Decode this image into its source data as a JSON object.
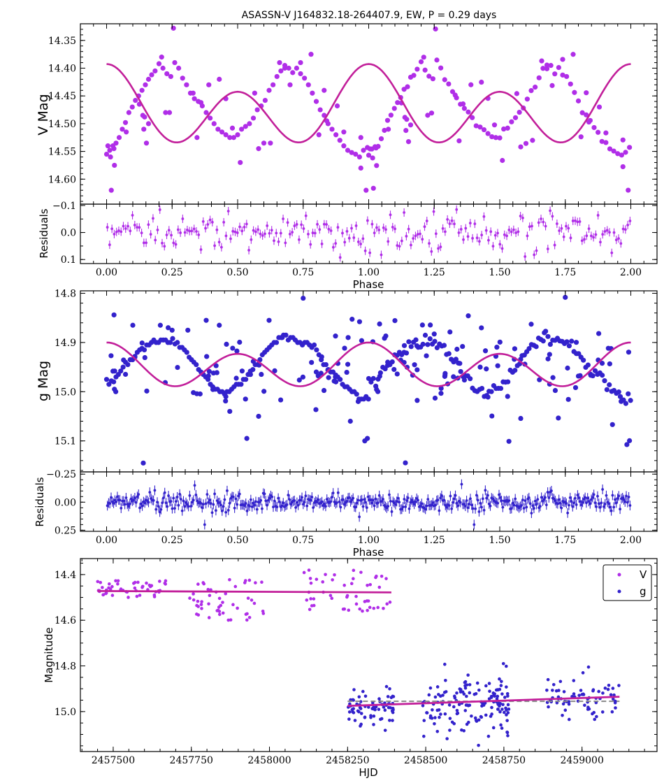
{
  "colors": {
    "v_points": "#b02ee8",
    "g_points": "#3322cc",
    "fit": "#c21f9a",
    "reference": "#888888"
  },
  "chart_data": [
    {
      "id": "v_phase",
      "type": "scatter",
      "title": "ASASSN-V J164832.18-264407.9, EW, P = 0.29 days",
      "xlabel": "",
      "ylabel": "V Mag",
      "y_inverted": true,
      "xlim": [
        -0.1,
        2.1
      ],
      "ylim": [
        14.32,
        14.645
      ],
      "yticks": [
        14.35,
        14.4,
        14.45,
        14.5,
        14.55,
        14.6
      ],
      "ytick_labels": [
        "14.35",
        "14.40",
        "14.45",
        "14.50",
        "14.55",
        "14.60"
      ],
      "xticks": [
        0.0,
        0.25,
        0.5,
        0.75,
        1.0,
        1.25,
        1.5,
        1.75,
        2.0
      ],
      "fit_model": {
        "mean": 14.475,
        "a1": 0.025,
        "a2": 0.0575
      },
      "points": {
        "x": [
          0.0,
          0.012,
          0.024,
          0.036,
          0.048,
          0.06,
          0.072,
          0.085,
          0.098,
          0.11,
          0.122,
          0.135,
          0.148,
          0.16,
          0.172,
          0.185,
          0.2,
          0.215,
          0.23,
          0.245,
          0.26,
          0.275,
          0.29,
          0.305,
          0.32,
          0.335,
          0.35,
          0.365,
          0.38,
          0.395,
          0.41,
          0.425,
          0.44,
          0.455,
          0.47,
          0.485,
          0.5,
          0.515,
          0.53,
          0.545,
          0.56,
          0.575,
          0.59,
          0.605,
          0.62,
          0.635,
          0.65,
          0.665,
          0.68,
          0.695,
          0.71,
          0.725,
          0.74,
          0.755,
          0.77,
          0.785,
          0.8,
          0.815,
          0.83,
          0.845,
          0.86,
          0.875,
          0.89,
          0.905,
          0.92,
          0.935,
          0.95,
          0.965,
          0.98,
          0.995,
          0.03,
          0.145,
          0.255,
          0.36,
          0.48,
          0.6,
          0.68,
          0.78,
          0.88,
          0.97,
          0.99,
          0.005,
          0.018,
          0.21,
          0.225,
          0.7,
          0.74,
          0.905,
          0.015,
          0.028,
          0.138,
          0.142,
          0.152,
          0.33,
          0.345,
          0.39,
          0.51,
          0.565,
          0.84,
          0.97,
          0.24,
          0.16,
          0.075,
          0.43,
          0.625,
          0.66,
          0.455,
          0.81,
          0.125,
          0.83,
          0.58
        ],
        "y": [
          14.555,
          14.548,
          14.54,
          14.535,
          14.525,
          14.51,
          14.498,
          14.48,
          14.47,
          14.458,
          14.45,
          14.44,
          14.43,
          14.42,
          14.412,
          14.405,
          14.392,
          14.4,
          14.41,
          14.415,
          14.39,
          14.4,
          14.418,
          14.43,
          14.445,
          14.455,
          14.46,
          14.468,
          14.48,
          14.49,
          14.5,
          14.51,
          14.515,
          14.52,
          14.525,
          14.525,
          14.52,
          14.51,
          14.505,
          14.5,
          14.49,
          14.475,
          14.468,
          14.458,
          14.44,
          14.43,
          14.415,
          14.405,
          14.4,
          14.4,
          14.408,
          14.4,
          14.41,
          14.418,
          14.43,
          14.445,
          14.46,
          14.475,
          14.485,
          14.5,
          14.51,
          14.52,
          14.53,
          14.54,
          14.548,
          14.552,
          14.555,
          14.56,
          14.548,
          14.543,
          14.575,
          14.488,
          14.328,
          14.462,
          14.508,
          14.535,
          14.395,
          14.375,
          14.468,
          14.58,
          14.62,
          14.54,
          14.62,
          14.38,
          14.48,
          14.43,
          14.39,
          14.515,
          14.56,
          14.545,
          14.485,
          14.51,
          14.535,
          14.445,
          14.525,
          14.43,
          14.57,
          14.445,
          14.495,
          14.525,
          14.48,
          14.5,
          14.515,
          14.42,
          14.535,
          14.39,
          14.455,
          14.52,
          14.465,
          14.44,
          14.545
        ]
      },
      "residuals": {
        "ylabel": "Residuals",
        "y_inverted": true,
        "ylim": [
          -0.105,
          0.115
        ],
        "yticks": [
          -0.1,
          0.0,
          0.1
        ],
        "ytick_labels": [
          "−0.1",
          "0.0",
          "0.1"
        ],
        "xlabel": "Phase",
        "xtick_labels": [
          "0.00",
          "0.25",
          "0.50",
          "0.75",
          "1.00",
          "1.25",
          "1.50",
          "1.75",
          "2.00"
        ]
      }
    },
    {
      "id": "g_phase",
      "type": "scatter",
      "xlabel": "",
      "ylabel": "g Mag",
      "y_inverted": true,
      "xlim": [
        -0.1,
        2.1
      ],
      "ylim": [
        14.795,
        15.163
      ],
      "yticks": [
        14.8,
        14.9,
        15.0,
        15.1
      ],
      "ytick_labels": [
        "14.8",
        "14.9",
        "15.0",
        "15.1"
      ],
      "xticks": [
        0.0,
        0.25,
        0.5,
        0.75,
        1.0,
        1.25,
        1.5,
        1.75,
        2.0
      ],
      "fit_model": {
        "mean": 14.95,
        "a1": 0.0115,
        "a2": 0.0385
      },
      "points": {
        "x": [
          0.0,
          0.009,
          0.018,
          0.027,
          0.036,
          0.045,
          0.054,
          0.063,
          0.072,
          0.081,
          0.09,
          0.099,
          0.108,
          0.117,
          0.126,
          0.135,
          0.144,
          0.153,
          0.162,
          0.171,
          0.18,
          0.189,
          0.198,
          0.207,
          0.216,
          0.225,
          0.234,
          0.243,
          0.252,
          0.261,
          0.27,
          0.279,
          0.288,
          0.297,
          0.306,
          0.315,
          0.324,
          0.333,
          0.342,
          0.351,
          0.36,
          0.369,
          0.378,
          0.387,
          0.396,
          0.405,
          0.414,
          0.423,
          0.432,
          0.441,
          0.45,
          0.459,
          0.468,
          0.477,
          0.486,
          0.495,
          0.504,
          0.513,
          0.522,
          0.531,
          0.54,
          0.549,
          0.558,
          0.567,
          0.576,
          0.585,
          0.594,
          0.603,
          0.612,
          0.621,
          0.63,
          0.639,
          0.648,
          0.657,
          0.666,
          0.675,
          0.684,
          0.693,
          0.702,
          0.711,
          0.72,
          0.729,
          0.738,
          0.747,
          0.756,
          0.765,
          0.774,
          0.783,
          0.792,
          0.801,
          0.81,
          0.819,
          0.828,
          0.837,
          0.846,
          0.855,
          0.864,
          0.873,
          0.882,
          0.891,
          0.9,
          0.909,
          0.918,
          0.927,
          0.936,
          0.945,
          0.954,
          0.963,
          0.972,
          0.981,
          0.99,
          0.999,
          0.14,
          0.235,
          0.1,
          0.47,
          0.58,
          0.535,
          0.75,
          0.8,
          0.93,
          0.985,
          0.995,
          0.03,
          0.25,
          0.31,
          0.43,
          0.62,
          0.67,
          0.96,
          0.205,
          0.035,
          0.38,
          0.455,
          0.53
        ],
        "y": [
          14.975,
          14.985,
          14.978,
          14.98,
          14.97,
          14.965,
          14.958,
          14.95,
          14.94,
          14.945,
          14.935,
          14.935,
          14.93,
          14.92,
          14.915,
          14.912,
          14.915,
          14.905,
          14.905,
          14.9,
          14.895,
          14.9,
          14.9,
          14.895,
          14.895,
          14.895,
          14.9,
          14.9,
          14.892,
          14.903,
          14.9,
          14.91,
          14.91,
          14.915,
          14.92,
          14.93,
          14.935,
          14.94,
          14.945,
          14.955,
          14.96,
          14.965,
          14.97,
          14.975,
          14.985,
          14.99,
          14.995,
          14.995,
          15.0,
          15.0,
          15.005,
          15.0,
          15.0,
          14.995,
          14.99,
          14.985,
          14.985,
          14.985,
          14.975,
          14.975,
          14.965,
          14.965,
          14.955,
          14.945,
          14.945,
          14.935,
          14.925,
          14.92,
          14.915,
          14.91,
          14.905,
          14.9,
          14.9,
          14.89,
          14.89,
          14.885,
          14.885,
          14.895,
          14.89,
          14.89,
          14.895,
          14.9,
          14.9,
          14.905,
          14.9,
          14.9,
          14.905,
          14.91,
          14.905,
          14.915,
          14.925,
          14.935,
          14.945,
          14.945,
          14.955,
          14.96,
          14.96,
          14.97,
          14.97,
          14.975,
          14.985,
          14.99,
          14.99,
          14.995,
          15.0,
          15.0,
          15.005,
          15.015,
          15.015,
          15.015,
          15.01,
          15.015,
          15.145,
          14.87,
          14.865,
          15.04,
          15.05,
          15.095,
          14.81,
          14.96,
          15.06,
          15.1,
          15.095,
          14.995,
          14.875,
          14.875,
          14.865,
          14.855,
          14.89,
          15.02,
          14.865,
          15.0,
          14.855,
          15.01,
          15.015
        ]
      },
      "residuals": {
        "ylabel": "Residuals",
        "y_inverted": true,
        "ylim": [
          -0.27,
          0.26
        ],
        "yticks": [
          -0.25,
          0.0,
          0.25
        ],
        "ytick_labels": [
          "−0.25",
          "0.00",
          "0.25"
        ],
        "xlabel": "Phase",
        "xtick_labels": [
          "0.00",
          "0.25",
          "0.50",
          "0.75",
          "1.00",
          "1.25",
          "1.50",
          "1.75",
          "2.00"
        ]
      }
    },
    {
      "id": "light_curve",
      "type": "scatter",
      "xlabel": "HJD",
      "ylabel": "Magnitude",
      "y_inverted": true,
      "xlim": [
        2457395,
        2459240
      ],
      "ylim": [
        14.33,
        15.175
      ],
      "yticks": [
        14.4,
        14.6,
        14.8,
        15.0
      ],
      "ytick_labels": [
        "14.4",
        "14.6",
        "14.8",
        "15.0"
      ],
      "xticks": [
        2457500,
        2457750,
        2458000,
        2458250,
        2458500,
        2458750,
        2459000
      ],
      "xtick_labels": [
        "2457500",
        "2457750",
        "2458000",
        "2458250",
        "2458500",
        "2458750",
        "2459000"
      ],
      "legend": {
        "position": "top-right",
        "entries": [
          "V",
          "g"
        ]
      },
      "series": [
        {
          "name": "V",
          "trend": {
            "x": [
              2457450,
              2458390
            ],
            "y": [
              14.472,
              14.478
            ]
          },
          "x_range": [
            2457450,
            2458390
          ],
          "clusters": [
            {
              "x": [
                2457450,
                2457670
              ],
              "y": [
                14.42,
                14.5
              ]
            },
            {
              "x": [
                2457745,
                2457985
              ],
              "y": [
                14.42,
                14.6
              ]
            },
            {
              "x": [
                2458110,
                2458390
              ],
              "y": [
                14.38,
                14.56
              ]
            }
          ],
          "count": 150
        },
        {
          "name": "g",
          "trend": {
            "x": [
              2458250,
              2459120
            ],
            "y": [
              14.975,
              14.935
            ]
          },
          "reference": {
            "x": [
              2458250,
              2459120
            ],
            "y": [
              14.955,
              14.955
            ]
          },
          "clusters": [
            {
              "x": [
                2458250,
                2458400
              ],
              "y": [
                14.9,
                15.06
              ]
            },
            {
              "x": [
                2458490,
                2458770
              ],
              "y": [
                14.85,
                15.1
              ]
            },
            {
              "x": [
                2458880,
                2459120
              ],
              "y": [
                14.86,
                15.02
              ]
            }
          ],
          "count": 290
        }
      ]
    }
  ]
}
